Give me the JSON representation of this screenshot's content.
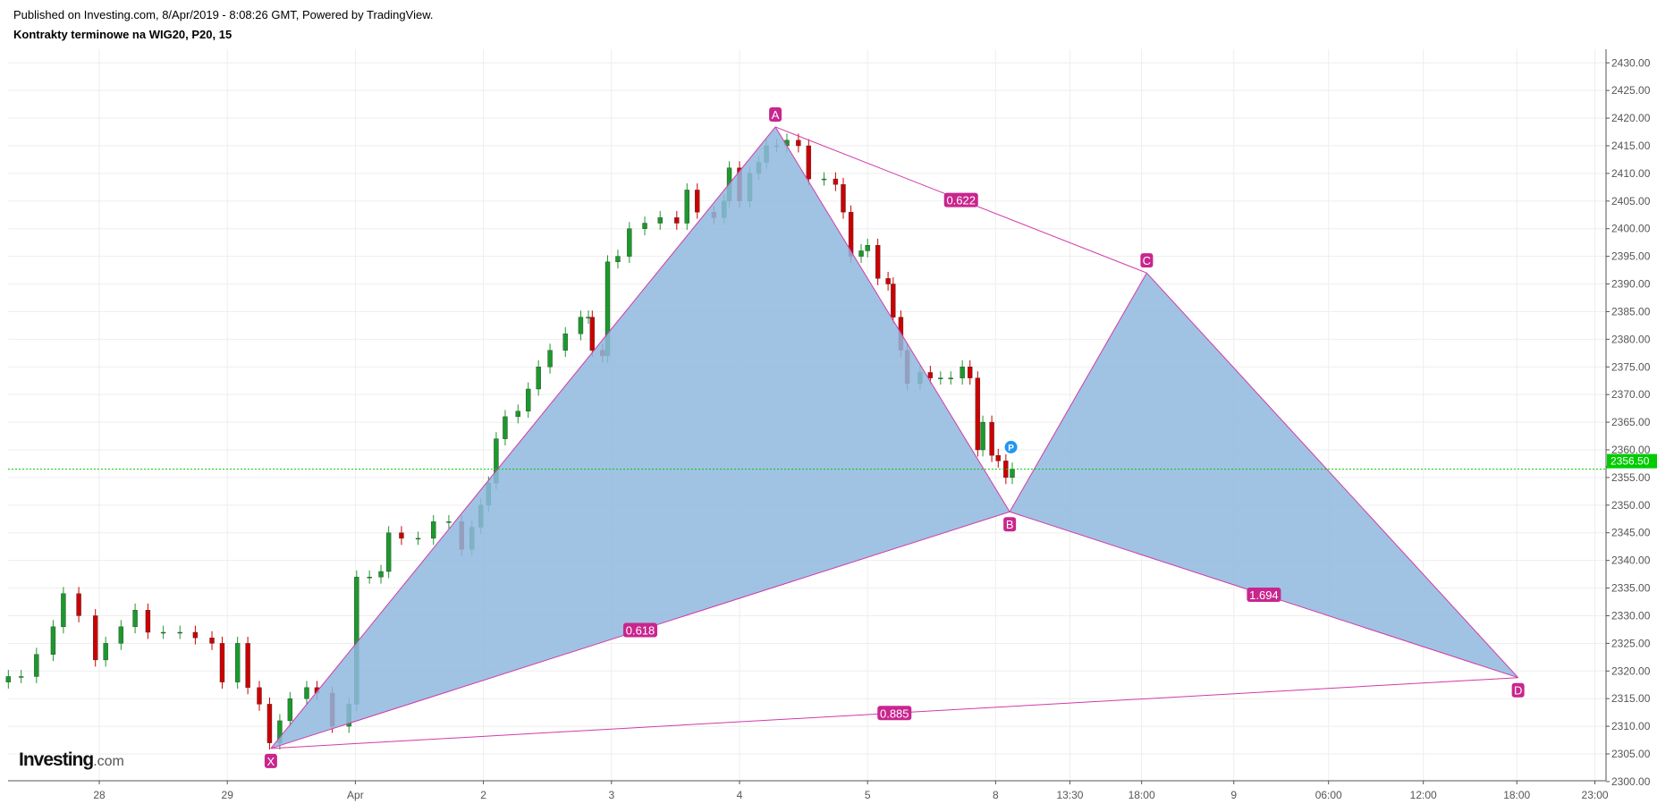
{
  "header": {
    "published": "Published on Investing.com, 8/Apr/2019 - 8:08:26 GMT, Powered by TradingView.",
    "title": "Kontrakty terminowe na WIG20, P20, 15"
  },
  "logo": {
    "main": "Investing",
    "suffix": ".com"
  },
  "colors": {
    "up": "#1a9a2a",
    "down": "#cc0000",
    "pattern_fill": "#8fb8de",
    "pattern_line": "#d13aa8",
    "label_bg": "#c8268e",
    "last_price": "#00cc00",
    "marker": "#2196f3"
  },
  "chart_data": {
    "type": "candlestick",
    "title": "Kontrakty terminowe na WIG20, P20, 15",
    "x_units": "trading-day index (28 = 0, 29 = 1, Apr = 2, 2 = 3, 3 = 4, 4 = 5, 5 = 6, 8 = 7)",
    "xlim": [
      -0.72,
      11.75
    ],
    "ylim": [
      2299,
      2432
    ],
    "x_ticks": [
      {
        "t": 0,
        "label": "28"
      },
      {
        "t": 1,
        "label": "29"
      },
      {
        "t": 2,
        "label": "Apr"
      },
      {
        "t": 3,
        "label": "2"
      },
      {
        "t": 4,
        "label": "3"
      },
      {
        "t": 5,
        "label": "4"
      },
      {
        "t": 6,
        "label": "5"
      },
      {
        "t": 7,
        "label": "8"
      },
      {
        "t": 7.58,
        "label": "13:30"
      },
      {
        "t": 8.14,
        "label": "18:00"
      },
      {
        "t": 8.86,
        "label": "9"
      },
      {
        "t": 9.6,
        "label": "06:00"
      },
      {
        "t": 10.34,
        "label": "12:00"
      },
      {
        "t": 11.07,
        "label": "18:00"
      },
      {
        "t": 11.68,
        "label": "23:00"
      }
    ],
    "y_ticks": [
      "2300.00",
      "2305.00",
      "2310.00",
      "2315.00",
      "2320.00",
      "2325.00",
      "2330.00",
      "2335.00",
      "2340.00",
      "2345.00",
      "2350.00",
      "2355.00",
      "2360.00",
      "2365.00",
      "2370.00",
      "2375.00",
      "2380.00",
      "2385.00",
      "2390.00",
      "2395.00",
      "2400.00",
      "2405.00",
      "2410.00",
      "2415.00",
      "2420.00",
      "2425.00",
      "2430.00"
    ],
    "last_price": {
      "value": 2356.5,
      "label": "2356.50"
    },
    "closes": [
      [
        -0.71,
        2319
      ],
      [
        -0.61,
        2319
      ],
      [
        -0.49,
        2323
      ],
      [
        -0.36,
        2328
      ],
      [
        -0.28,
        2334
      ],
      [
        -0.16,
        2330
      ],
      [
        -0.03,
        2322
      ],
      [
        0.05,
        2325
      ],
      [
        0.17,
        2328
      ],
      [
        0.28,
        2331
      ],
      [
        0.38,
        2327
      ],
      [
        0.5,
        2327
      ],
      [
        0.63,
        2327
      ],
      [
        0.75,
        2326
      ],
      [
        0.88,
        2325
      ],
      [
        0.96,
        2318
      ],
      [
        1.08,
        2325
      ],
      [
        1.16,
        2317
      ],
      [
        1.25,
        2314
      ],
      [
        1.33,
        2307
      ],
      [
        1.41,
        2311
      ],
      [
        1.49,
        2315
      ],
      [
        1.62,
        2317
      ],
      [
        1.7,
        2316
      ],
      [
        1.82,
        2310
      ],
      [
        1.95,
        2314
      ],
      [
        2.01,
        2337
      ],
      [
        2.11,
        2337
      ],
      [
        2.2,
        2338
      ],
      [
        2.26,
        2345
      ],
      [
        2.36,
        2344
      ],
      [
        2.49,
        2344
      ],
      [
        2.61,
        2347
      ],
      [
        2.73,
        2347
      ],
      [
        2.83,
        2342
      ],
      [
        2.91,
        2346
      ],
      [
        2.98,
        2350
      ],
      [
        3.04,
        2354
      ],
      [
        3.1,
        2362
      ],
      [
        3.17,
        2366
      ],
      [
        3.27,
        2367
      ],
      [
        3.35,
        2371
      ],
      [
        3.43,
        2375
      ],
      [
        3.52,
        2378
      ],
      [
        3.64,
        2381
      ],
      [
        3.76,
        2384
      ],
      [
        3.82,
        2384
      ],
      [
        3.85,
        2378
      ],
      [
        3.93,
        2377
      ],
      [
        3.97,
        2394
      ],
      [
        4.05,
        2395
      ],
      [
        4.14,
        2400
      ],
      [
        4.26,
        2401
      ],
      [
        4.38,
        2402
      ],
      [
        4.51,
        2401
      ],
      [
        4.59,
        2407
      ],
      [
        4.67,
        2403
      ],
      [
        4.8,
        2402
      ],
      [
        4.88,
        2405
      ],
      [
        4.92,
        2411
      ],
      [
        5.0,
        2405
      ],
      [
        5.08,
        2410
      ],
      [
        5.15,
        2412
      ],
      [
        5.21,
        2415
      ],
      [
        5.29,
        2415
      ],
      [
        5.37,
        2416
      ],
      [
        5.46,
        2415
      ],
      [
        5.54,
        2409
      ],
      [
        5.66,
        2409
      ],
      [
        5.75,
        2408
      ],
      [
        5.81,
        2403
      ],
      [
        5.87,
        2395
      ],
      [
        5.95,
        2396
      ],
      [
        6.0,
        2397
      ],
      [
        6.08,
        2391
      ],
      [
        6.16,
        2390
      ],
      [
        6.2,
        2384
      ],
      [
        6.26,
        2378
      ],
      [
        6.31,
        2372
      ],
      [
        6.41,
        2374
      ],
      [
        6.49,
        2373
      ],
      [
        6.57,
        2373
      ],
      [
        6.65,
        2373
      ],
      [
        6.74,
        2375
      ],
      [
        6.8,
        2373
      ],
      [
        6.86,
        2360
      ],
      [
        6.9,
        2365
      ],
      [
        6.97,
        2359
      ],
      [
        7.02,
        2358
      ],
      [
        7.08,
        2355
      ],
      [
        7.13,
        2356.5
      ]
    ],
    "pattern": {
      "name": "XABCD",
      "points": [
        {
          "label": "X",
          "t": 1.34,
          "price": 2306.0,
          "pos": "below"
        },
        {
          "label": "A",
          "t": 5.28,
          "price": 2418.4,
          "pos": "above"
        },
        {
          "label": "B",
          "t": 7.11,
          "price": 2348.8,
          "pos": "below"
        },
        {
          "label": "C",
          "t": 8.18,
          "price": 2392.0,
          "pos": "above"
        },
        {
          "label": "D",
          "t": 11.08,
          "price": 2318.8,
          "pos": "below"
        }
      ],
      "ratios": [
        {
          "from": "X",
          "to": "B",
          "label": "0.618"
        },
        {
          "from": "A",
          "to": "C",
          "label": "0.622"
        },
        {
          "from": "B",
          "to": "D",
          "label": "1.694"
        },
        {
          "from": "X",
          "to": "D",
          "label": "0.885"
        }
      ]
    },
    "marker": {
      "label": "P",
      "t": 7.12,
      "price": 2360.5
    }
  }
}
